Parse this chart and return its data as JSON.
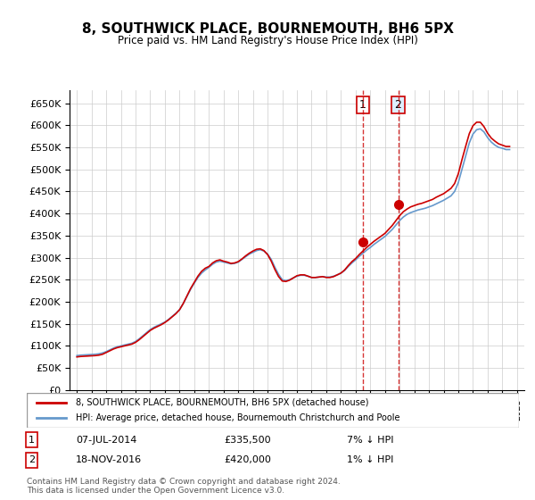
{
  "title": "8, SOUTHWICK PLACE, BOURNEMOUTH, BH6 5PX",
  "subtitle": "Price paid vs. HM Land Registry's House Price Index (HPI)",
  "ylabel_ticks": [
    "£0",
    "£50K",
    "£100K",
    "£150K",
    "£200K",
    "£250K",
    "£300K",
    "£350K",
    "£400K",
    "£450K",
    "£500K",
    "£550K",
    "£600K",
    "£650K"
  ],
  "ytick_values": [
    0,
    50000,
    100000,
    150000,
    200000,
    250000,
    300000,
    350000,
    400000,
    450000,
    500000,
    550000,
    600000,
    650000
  ],
  "ylim": [
    0,
    680000
  ],
  "xlim_start": 1994.5,
  "xlim_end": 2025.5,
  "legend_line1": "8, SOUTHWICK PLACE, BOURNEMOUTH, BH6 5PX (detached house)",
  "legend_line2": "HPI: Average price, detached house, Bournemouth Christchurch and Poole",
  "sale1_date": "07-JUL-2014",
  "sale1_price": "£335,500",
  "sale1_note": "7% ↓ HPI",
  "sale1_x": 2014.5,
  "sale1_y": 335500,
  "sale2_date": "18-NOV-2016",
  "sale2_price": "£420,000",
  "sale2_note": "1% ↓ HPI",
  "sale2_x": 2016.9,
  "sale2_y": 420000,
  "line_color_red": "#cc0000",
  "line_color_blue": "#6699cc",
  "background_color": "#ffffff",
  "grid_color": "#cccccc",
  "footer_text": "Contains HM Land Registry data © Crown copyright and database right 2024.\nThis data is licensed under the Open Government Licence v3.0.",
  "hpi_x": [
    1995,
    1995.25,
    1995.5,
    1995.75,
    1996,
    1996.25,
    1996.5,
    1996.75,
    1997,
    1997.25,
    1997.5,
    1997.75,
    1998,
    1998.25,
    1998.5,
    1998.75,
    1999,
    1999.25,
    1999.5,
    1999.75,
    2000,
    2000.25,
    2000.5,
    2000.75,
    2001,
    2001.25,
    2001.5,
    2001.75,
    2002,
    2002.25,
    2002.5,
    2002.75,
    2003,
    2003.25,
    2003.5,
    2003.75,
    2004,
    2004.25,
    2004.5,
    2004.75,
    2005,
    2005.25,
    2005.5,
    2005.75,
    2006,
    2006.25,
    2006.5,
    2006.75,
    2007,
    2007.25,
    2007.5,
    2007.75,
    2008,
    2008.25,
    2008.5,
    2008.75,
    2009,
    2009.25,
    2009.5,
    2009.75,
    2010,
    2010.25,
    2010.5,
    2010.75,
    2011,
    2011.25,
    2011.5,
    2011.75,
    2012,
    2012.25,
    2012.5,
    2012.75,
    2013,
    2013.25,
    2013.5,
    2013.75,
    2014,
    2014.25,
    2014.5,
    2014.75,
    2015,
    2015.25,
    2015.5,
    2015.75,
    2016,
    2016.25,
    2016.5,
    2016.75,
    2017,
    2017.25,
    2017.5,
    2017.75,
    2018,
    2018.25,
    2018.5,
    2018.75,
    2019,
    2019.25,
    2019.5,
    2019.75,
    2020,
    2020.25,
    2020.5,
    2020.75,
    2021,
    2021.25,
    2021.5,
    2021.75,
    2022,
    2022.25,
    2022.5,
    2022.75,
    2023,
    2023.25,
    2023.5,
    2023.75,
    2024,
    2024.25,
    2024.5
  ],
  "hpi_y": [
    78000,
    79000,
    79500,
    80000,
    80500,
    81000,
    82000,
    84000,
    87000,
    91000,
    95000,
    98000,
    100000,
    102000,
    104000,
    106000,
    110000,
    116000,
    123000,
    130000,
    137000,
    142000,
    146000,
    150000,
    154000,
    160000,
    167000,
    174000,
    182000,
    196000,
    212000,
    228000,
    242000,
    255000,
    265000,
    272000,
    278000,
    285000,
    290000,
    292000,
    290000,
    288000,
    286000,
    287000,
    290000,
    296000,
    302000,
    308000,
    312000,
    316000,
    318000,
    315000,
    308000,
    296000,
    278000,
    262000,
    250000,
    248000,
    250000,
    254000,
    258000,
    260000,
    260000,
    258000,
    255000,
    255000,
    256000,
    257000,
    256000,
    256000,
    258000,
    261000,
    265000,
    271000,
    280000,
    288000,
    295000,
    303000,
    310000,
    317000,
    323000,
    330000,
    336000,
    342000,
    348000,
    356000,
    364000,
    374000,
    384000,
    392000,
    398000,
    402000,
    405000,
    408000,
    410000,
    412000,
    415000,
    418000,
    422000,
    426000,
    430000,
    435000,
    440000,
    450000,
    470000,
    500000,
    530000,
    560000,
    580000,
    590000,
    592000,
    585000,
    572000,
    562000,
    555000,
    550000,
    548000,
    545000,
    545000
  ],
  "red_x": [
    1995,
    1995.25,
    1995.5,
    1995.75,
    1996,
    1996.25,
    1996.5,
    1996.75,
    1997,
    1997.25,
    1997.5,
    1997.75,
    1998,
    1998.25,
    1998.5,
    1998.75,
    1999,
    1999.25,
    1999.5,
    1999.75,
    2000,
    2000.25,
    2000.5,
    2000.75,
    2001,
    2001.25,
    2001.5,
    2001.75,
    2002,
    2002.25,
    2002.5,
    2002.75,
    2003,
    2003.25,
    2003.5,
    2003.75,
    2004,
    2004.25,
    2004.5,
    2004.75,
    2005,
    2005.25,
    2005.5,
    2005.75,
    2006,
    2006.25,
    2006.5,
    2006.75,
    2007,
    2007.25,
    2007.5,
    2007.75,
    2008,
    2008.25,
    2008.5,
    2008.75,
    2009,
    2009.25,
    2009.5,
    2009.75,
    2010,
    2010.25,
    2010.5,
    2010.75,
    2011,
    2011.25,
    2011.5,
    2011.75,
    2012,
    2012.25,
    2012.5,
    2012.75,
    2013,
    2013.25,
    2013.5,
    2013.75,
    2014,
    2014.25,
    2014.5,
    2014.75,
    2015,
    2015.25,
    2015.5,
    2015.75,
    2016,
    2016.25,
    2016.5,
    2016.75,
    2017,
    2017.25,
    2017.5,
    2017.75,
    2018,
    2018.25,
    2018.5,
    2018.75,
    2019,
    2019.25,
    2019.5,
    2019.75,
    2020,
    2020.25,
    2020.5,
    2020.75,
    2021,
    2021.25,
    2021.5,
    2021.75,
    2022,
    2022.25,
    2022.5,
    2022.75,
    2023,
    2023.25,
    2023.5,
    2023.75,
    2024,
    2024.25,
    2024.5
  ],
  "red_y": [
    75000,
    76000,
    76500,
    77000,
    77500,
    78000,
    79000,
    81000,
    85000,
    89000,
    93000,
    96000,
    98000,
    100000,
    102000,
    104000,
    108000,
    114000,
    121000,
    128000,
    135000,
    140000,
    144000,
    148000,
    153000,
    159000,
    166000,
    173000,
    182000,
    196000,
    213000,
    230000,
    244000,
    258000,
    269000,
    276000,
    280000,
    288000,
    293000,
    295000,
    292000,
    290000,
    287000,
    288000,
    291000,
    297000,
    304000,
    310000,
    315000,
    319000,
    320000,
    316000,
    307000,
    292000,
    273000,
    257000,
    247000,
    246000,
    249000,
    254000,
    259000,
    261000,
    261000,
    258000,
    255000,
    255000,
    256000,
    257000,
    255000,
    255000,
    257000,
    261000,
    265000,
    272000,
    282000,
    291000,
    298000,
    307000,
    315000,
    323000,
    330000,
    337000,
    343000,
    349000,
    355000,
    364000,
    373000,
    384000,
    395000,
    404000,
    410000,
    415000,
    418000,
    421000,
    423000,
    426000,
    429000,
    432000,
    437000,
    441000,
    445000,
    451000,
    457000,
    468000,
    490000,
    522000,
    552000,
    581000,
    599000,
    607000,
    607000,
    597000,
    582000,
    571000,
    564000,
    558000,
    555000,
    552000,
    552000
  ]
}
